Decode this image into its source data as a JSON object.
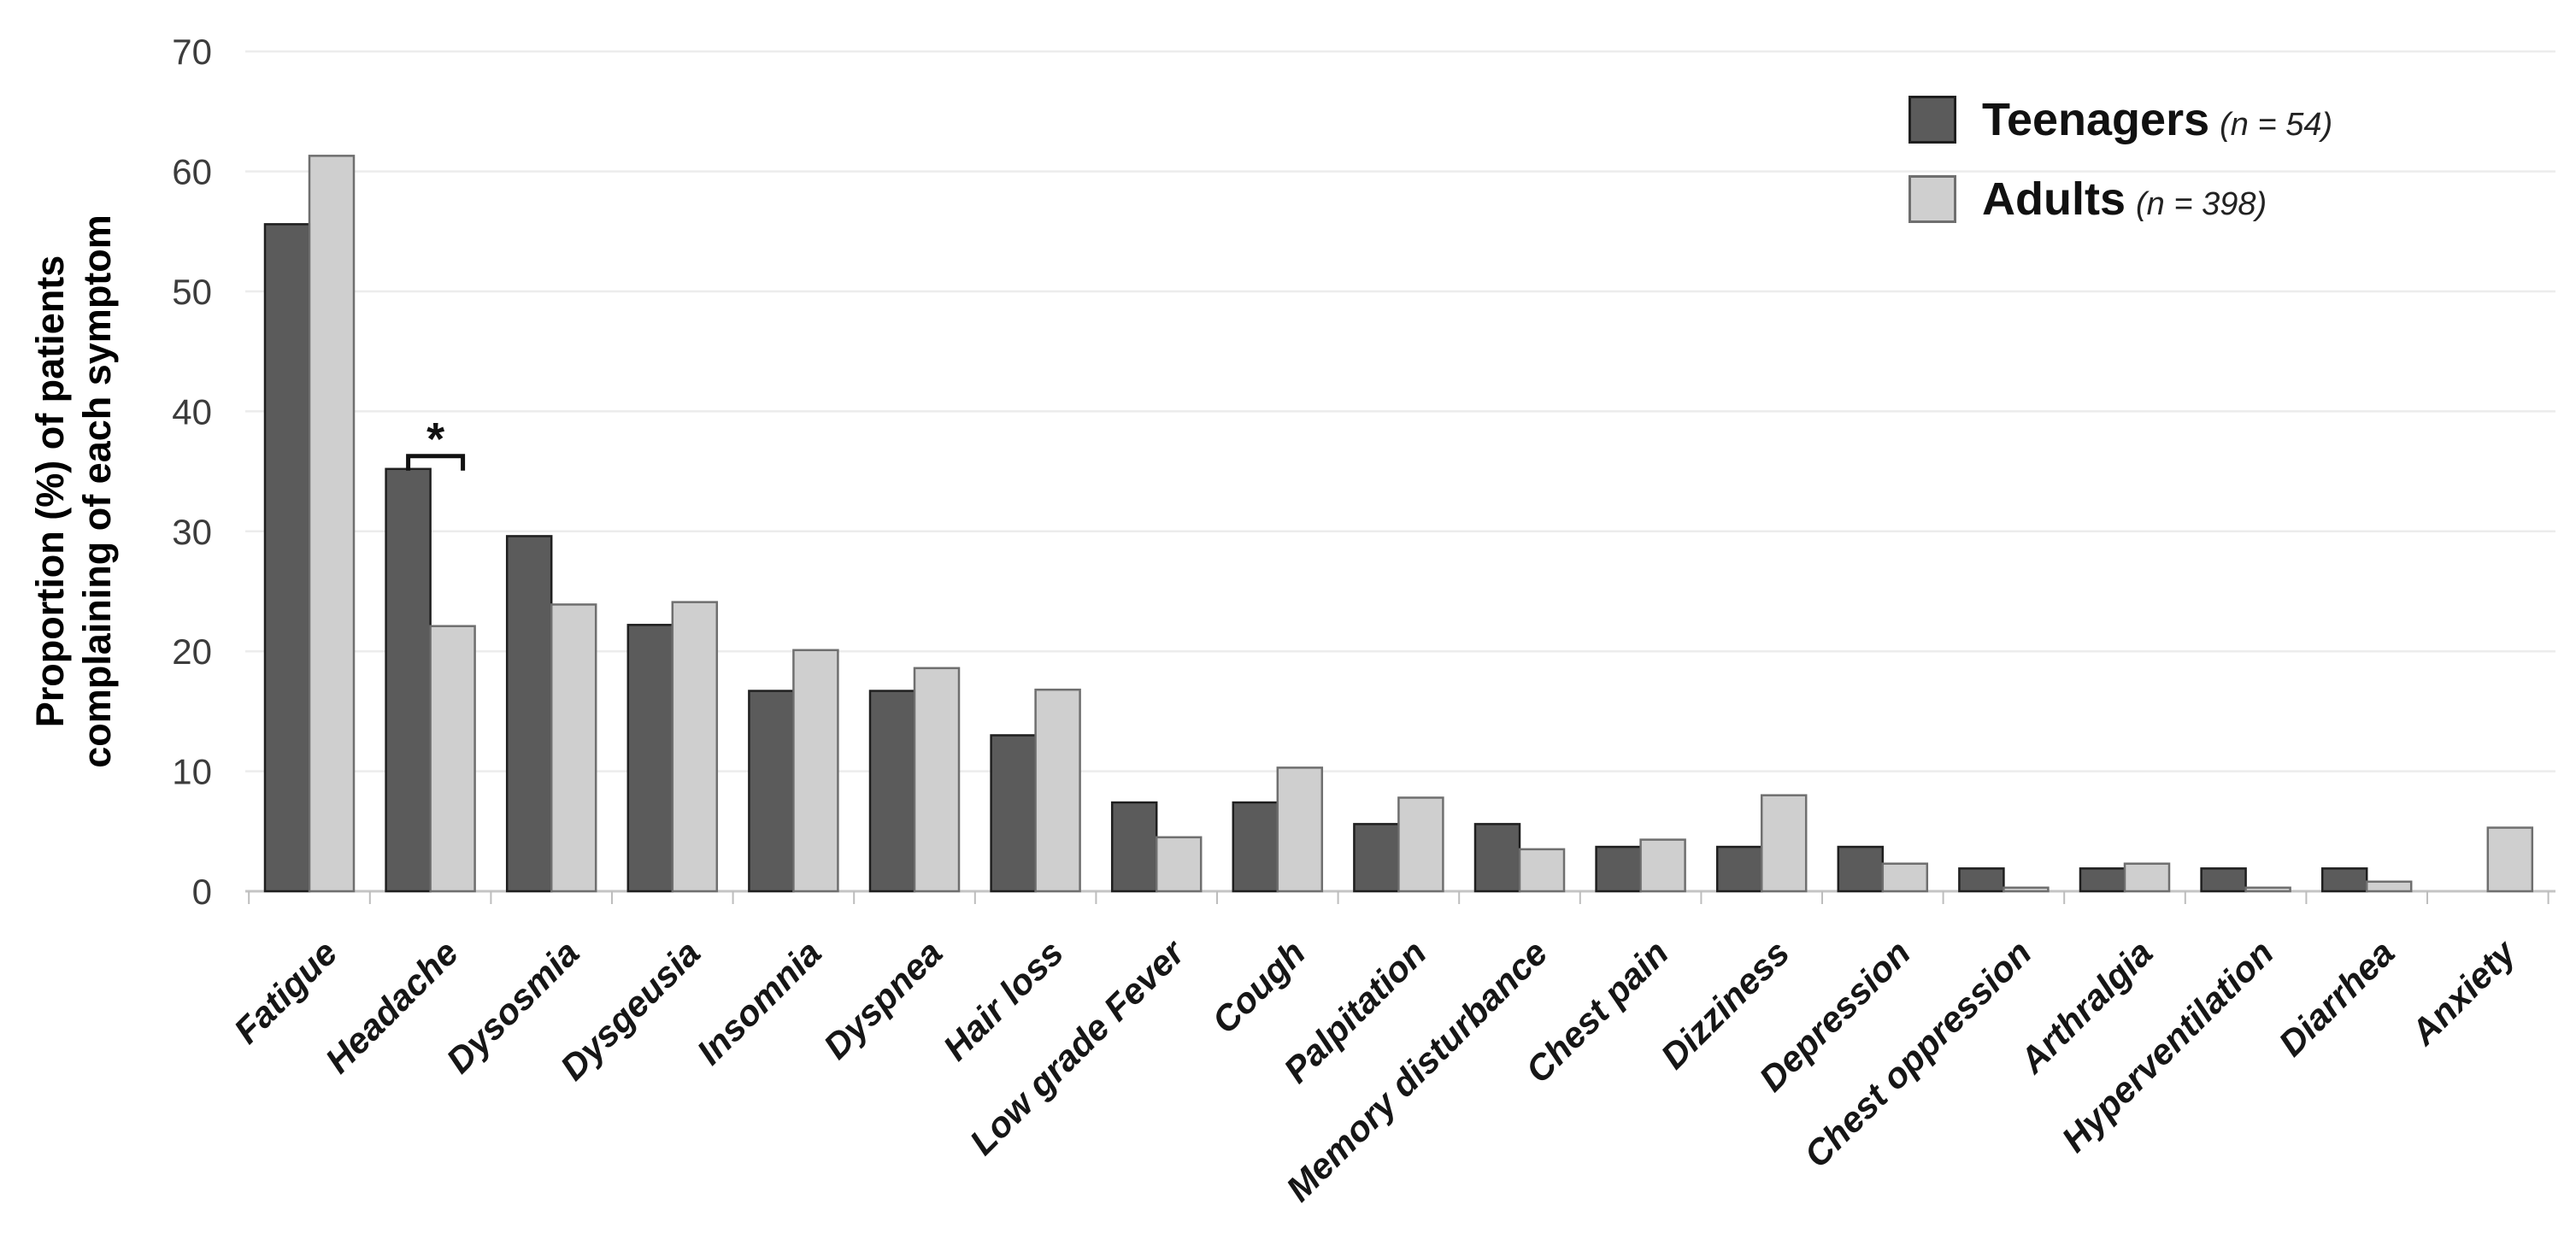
{
  "figure": {
    "background": "#ffffff"
  },
  "chart_data": {
    "type": "bar",
    "title": "",
    "ylabel_lines": [
      "Proportion (%) of patients",
      "complaining of each symptom"
    ],
    "xlabel": "",
    "ylim": [
      0,
      70
    ],
    "yticks": [
      0,
      10,
      20,
      30,
      40,
      50,
      60,
      70
    ],
    "grid": "horizontal",
    "legend_position": "top-right",
    "categories": [
      "Fatigue",
      "Headache",
      "Dysosmia",
      "Dysgeusia",
      "Insomnia",
      "Dyspnea",
      "Hair loss",
      "Low grade Fever",
      "Cough",
      "Palpitation",
      "Memory disturbance",
      "Chest pain",
      "Dizziness",
      "Depression",
      "Chest oppression",
      "Arthralgia",
      "Hyperventilation",
      "Diarrhea",
      "Anxiety"
    ],
    "series": [
      {
        "name": "Teenagers",
        "n_label": "(n = 54)",
        "color": "#5B5B5B",
        "border": "#1F1F1F",
        "values": [
          55.6,
          35.2,
          29.6,
          22.2,
          16.7,
          16.7,
          13.0,
          7.4,
          7.4,
          5.6,
          5.6,
          3.7,
          3.7,
          3.7,
          1.9,
          1.9,
          1.9,
          1.9,
          0
        ]
      },
      {
        "name": "Adults",
        "n_label": "(n = 398)",
        "color": "#CFCFCF",
        "border": "#6F6F6F",
        "values": [
          61.3,
          22.1,
          23.9,
          24.1,
          20.1,
          18.6,
          16.8,
          4.5,
          10.3,
          7.8,
          3.5,
          4.3,
          8.0,
          2.3,
          0.3,
          2.3,
          0.3,
          0.8,
          5.3
        ]
      }
    ],
    "annotations": [
      {
        "type": "significance-bracket",
        "category": "Headache",
        "label": "*",
        "between": [
          "Teenagers",
          "Adults"
        ]
      }
    ]
  },
  "colors": {
    "gridline": "#ECECEC",
    "axis_line": "#C4C4C4",
    "category_tick": "#BDBDBD",
    "y_tick_text": "#3C3C3C",
    "x_label_text": "#161616",
    "annotation": "#111111"
  }
}
